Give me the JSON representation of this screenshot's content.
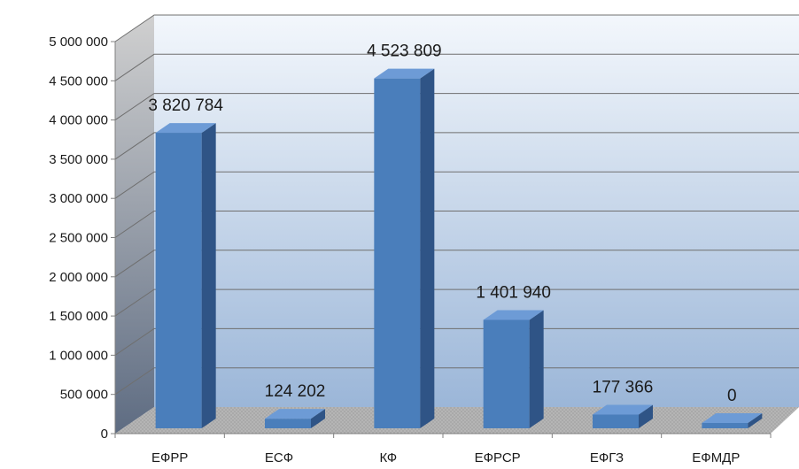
{
  "chart_data": {
    "type": "bar",
    "style": "3d-column",
    "title": "",
    "xlabel": "",
    "ylabel": "",
    "categories": [
      "ЕФРР",
      "ЕСФ",
      "КФ",
      "ЕФРСР",
      "ЕФГЗ",
      "ЕФМДР"
    ],
    "values": [
      3820784,
      124202,
      4523809,
      1401940,
      177366,
      0
    ],
    "data_labels": [
      "3 820 784",
      "124 202",
      "4 523 809",
      "1 401 940",
      "177 366",
      "0"
    ],
    "ylim": [
      0,
      5000000
    ],
    "yticks": [
      0,
      500000,
      1000000,
      1500000,
      2000000,
      2500000,
      3000000,
      3500000,
      4000000,
      4500000,
      5000000
    ],
    "ytick_labels": [
      "0",
      "500 000",
      "1 000 000",
      "1 500 000",
      "2 000 000",
      "2 500 000",
      "3 000 000",
      "3 500 000",
      "4 000 000",
      "4 500 000",
      "5 000 000"
    ],
    "grid": true,
    "legend": "none",
    "colors": {
      "bar_front": "#4a7ebb",
      "bar_side": "#2f5486",
      "bar_top": "#6d9bd6",
      "back_wall_top": "#f3f7fc",
      "back_wall_bottom": "#9bb6d8",
      "side_wall_top": "#d0d0d0",
      "side_wall_bottom": "#5e6c82",
      "floor": "#a9a9a9",
      "gridline": "#6f6f6f"
    }
  }
}
